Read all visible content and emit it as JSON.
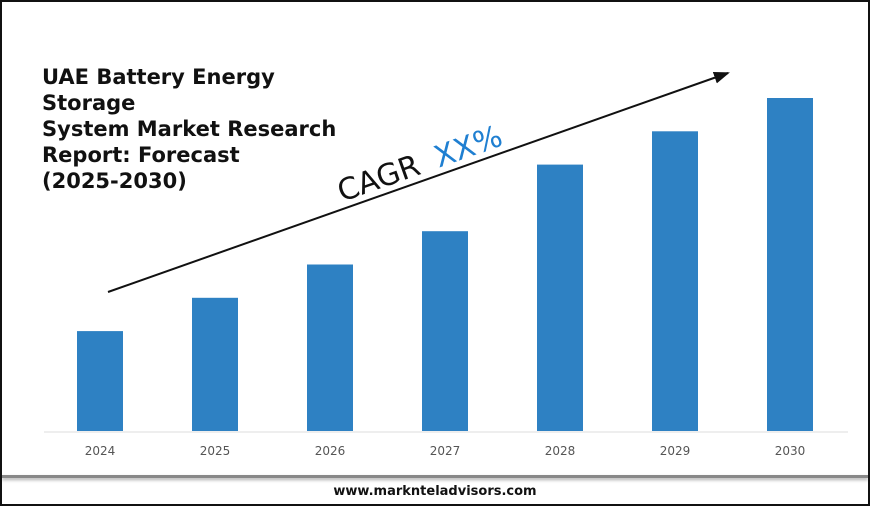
{
  "chart_data": {
    "type": "bar",
    "title": "UAE Battery Energy Storage System Market Research Report: Forecast (2025-2030)",
    "title_lines": [
      "UAE Battery Energy Storage",
      "System Market Research",
      "Report: Forecast",
      "(2025-2030)"
    ],
    "categories": [
      "2024",
      "2025",
      "2026",
      "2027",
      "2028",
      "2029",
      "2030"
    ],
    "values": [
      30,
      40,
      50,
      60,
      80,
      90,
      100
    ],
    "value_note_hidden": null,
    "xlabel": "",
    "ylabel": "",
    "grid": false,
    "bar_color": "#2e81c3",
    "annotation": {
      "prefix": "CAGR",
      "value": "XX%",
      "value_color": "#1f7fd1"
    }
  },
  "footer": "www.marknteladvisors.com"
}
